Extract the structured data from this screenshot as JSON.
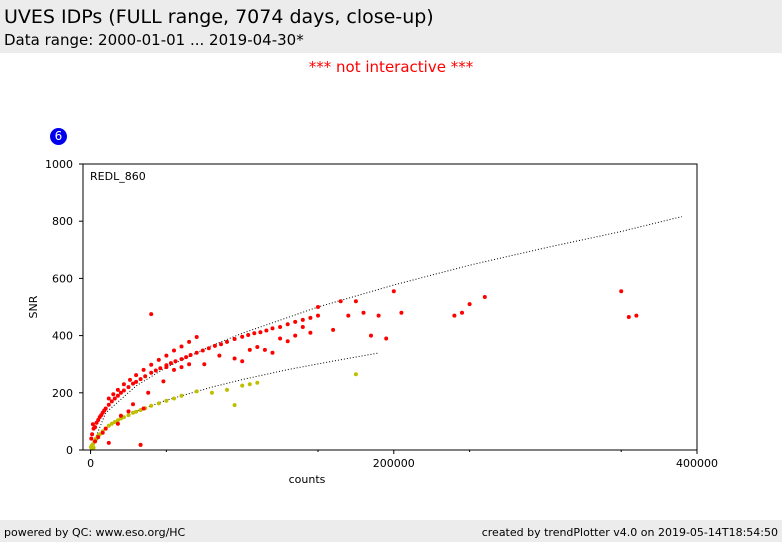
{
  "header": {
    "title": "UVES IDPs (FULL range, 7074 days, close-up)",
    "subtitle": "Data range: 2000-01-01 ... 2019-04-30*"
  },
  "notice": "*** not interactive ***",
  "badge": "6",
  "footer": {
    "left": "powered by QC: www.eso.org/HC",
    "right": "created by trendPlotter v4.0 on 2019-05-14T18:54:50"
  },
  "colors": {
    "red_series": "#ff0000",
    "yellow_series": "#bfbf00",
    "badge": "#0000ee",
    "notice": "#ff0000"
  },
  "chart_data": {
    "type": "scatter",
    "panel_label": "REDL_860",
    "xlabel": "counts",
    "ylabel": "SNR",
    "xlim": [
      -5000,
      400000
    ],
    "ylim": [
      0,
      1000
    ],
    "x_ticks": [
      0,
      200000,
      400000
    ],
    "x_tick_labels": [
      "0",
      "200000",
      "400000"
    ],
    "y_ticks": [
      0,
      200,
      400,
      600,
      800,
      1000
    ],
    "y_tick_labels": [
      "0",
      "200",
      "400",
      "600",
      "800",
      "1000"
    ],
    "grid": false,
    "reference_curves": [
      {
        "style": "dotted",
        "x": [
          0,
          10000,
          30000,
          50000,
          80000,
          100000,
          150000,
          200000,
          250000,
          300000,
          350000,
          390000
        ],
        "y": [
          0,
          130,
          224,
          289,
          365,
          408,
          500,
          577,
          646,
          707,
          764,
          816
        ]
      },
      {
        "style": "dotted",
        "x": [
          0,
          10000,
          30000,
          50000,
          80000,
          100000,
          130000,
          160000,
          190000
        ],
        "y": [
          0,
          78,
          135,
          174,
          220,
          246,
          281,
          311,
          339
        ]
      }
    ],
    "series": [
      {
        "color": "red",
        "points": [
          [
            500,
            40
          ],
          [
            1000,
            55
          ],
          [
            1500,
            90
          ],
          [
            2000,
            75
          ],
          [
            3000,
            80
          ],
          [
            4000,
            95
          ],
          [
            5000,
            105
          ],
          [
            6000,
            115
          ],
          [
            7000,
            122
          ],
          [
            8000,
            130
          ],
          [
            9000,
            138
          ],
          [
            10000,
            145
          ],
          [
            12000,
            158
          ],
          [
            14000,
            170
          ],
          [
            16000,
            180
          ],
          [
            18000,
            190
          ],
          [
            20000,
            200
          ],
          [
            22000,
            208
          ],
          [
            25000,
            220
          ],
          [
            28000,
            232
          ],
          [
            30000,
            238
          ],
          [
            33000,
            248
          ],
          [
            36000,
            258
          ],
          [
            40000,
            270
          ],
          [
            43000,
            278
          ],
          [
            46000,
            286
          ],
          [
            50000,
            296
          ],
          [
            53000,
            304
          ],
          [
            56000,
            310
          ],
          [
            60000,
            318
          ],
          [
            63000,
            325
          ],
          [
            66000,
            332
          ],
          [
            70000,
            340
          ],
          [
            74000,
            348
          ],
          [
            78000,
            356
          ],
          [
            82000,
            364
          ],
          [
            86000,
            370
          ],
          [
            90000,
            378
          ],
          [
            95000,
            388
          ],
          [
            100000,
            396
          ],
          [
            104000,
            402
          ],
          [
            108000,
            408
          ],
          [
            112000,
            412
          ],
          [
            116000,
            418
          ],
          [
            120000,
            425
          ],
          [
            125000,
            430
          ],
          [
            130000,
            440
          ],
          [
            135000,
            448
          ],
          [
            140000,
            455
          ],
          [
            145000,
            462
          ],
          [
            150000,
            470
          ],
          [
            12000,
            180
          ],
          [
            15000,
            195
          ],
          [
            18000,
            210
          ],
          [
            22000,
            230
          ],
          [
            26000,
            245
          ],
          [
            30000,
            262
          ],
          [
            35000,
            280
          ],
          [
            40000,
            298
          ],
          [
            45000,
            315
          ],
          [
            50000,
            330
          ],
          [
            55000,
            348
          ],
          [
            60000,
            362
          ],
          [
            65000,
            378
          ],
          [
            70000,
            395
          ],
          [
            12000,
            25
          ],
          [
            18000,
            92
          ],
          [
            25000,
            135
          ],
          [
            33000,
            18
          ],
          [
            35000,
            145
          ],
          [
            40000,
            475
          ],
          [
            50000,
            290
          ],
          [
            55000,
            280
          ],
          [
            60000,
            290
          ],
          [
            65000,
            300
          ],
          [
            75000,
            300
          ],
          [
            85000,
            330
          ],
          [
            95000,
            320
          ],
          [
            100000,
            310
          ],
          [
            105000,
            350
          ],
          [
            110000,
            360
          ],
          [
            115000,
            350
          ],
          [
            120000,
            340
          ],
          [
            125000,
            390
          ],
          [
            130000,
            380
          ],
          [
            135000,
            400
          ],
          [
            140000,
            430
          ],
          [
            145000,
            410
          ],
          [
            150000,
            500
          ],
          [
            160000,
            420
          ],
          [
            165000,
            520
          ],
          [
            170000,
            470
          ],
          [
            175000,
            520
          ],
          [
            180000,
            480
          ],
          [
            185000,
            400
          ],
          [
            190000,
            470
          ],
          [
            195000,
            390
          ],
          [
            200000,
            555
          ],
          [
            205000,
            480
          ],
          [
            240000,
            470
          ],
          [
            245000,
            480
          ],
          [
            250000,
            510
          ],
          [
            260000,
            535
          ],
          [
            350000,
            555
          ],
          [
            355000,
            465
          ],
          [
            360000,
            470
          ],
          [
            3000,
            30
          ],
          [
            5000,
            45
          ],
          [
            8000,
            60
          ],
          [
            10000,
            75
          ],
          [
            20000,
            120
          ],
          [
            28000,
            160
          ],
          [
            38000,
            200
          ],
          [
            48000,
            240
          ]
        ]
      },
      {
        "color": "yellow",
        "points": [
          [
            300,
            10
          ],
          [
            800,
            15
          ],
          [
            1500,
            20
          ],
          [
            2500,
            30
          ],
          [
            3500,
            40
          ],
          [
            5000,
            50
          ],
          [
            6000,
            55
          ],
          [
            8000,
            65
          ],
          [
            10000,
            75
          ],
          [
            12000,
            85
          ],
          [
            14000,
            92
          ],
          [
            16000,
            98
          ],
          [
            18000,
            104
          ],
          [
            20000,
            110
          ],
          [
            22000,
            115
          ],
          [
            25000,
            122
          ],
          [
            28000,
            130
          ],
          [
            30000,
            134
          ],
          [
            33000,
            140
          ],
          [
            36000,
            146
          ],
          [
            40000,
            155
          ],
          [
            45000,
            163
          ],
          [
            50000,
            172
          ],
          [
            55000,
            180
          ],
          [
            60000,
            190
          ],
          [
            70000,
            205
          ],
          [
            80000,
            200
          ],
          [
            90000,
            210
          ],
          [
            95000,
            157
          ],
          [
            100000,
            225
          ],
          [
            105000,
            230
          ],
          [
            110000,
            235
          ],
          [
            175000,
            265
          ],
          [
            33000,
            18
          ],
          [
            1000,
            5
          ],
          [
            2000,
            8
          ]
        ]
      }
    ]
  }
}
